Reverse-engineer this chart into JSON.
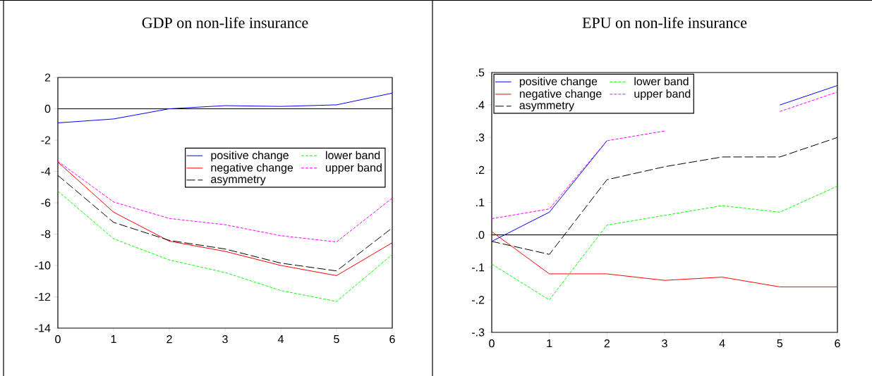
{
  "chart_data": [
    {
      "type": "line",
      "title": "GDP on non-life insurance",
      "x": [
        0,
        1,
        2,
        3,
        4,
        5,
        6
      ],
      "xlim": [
        0,
        6
      ],
      "xticks": [
        0,
        1,
        2,
        3,
        4,
        5,
        6
      ],
      "ylim": [
        -14,
        2
      ],
      "yticks": [
        -14,
        -12,
        -10,
        -8,
        -6,
        -4,
        -2,
        0,
        2
      ],
      "legend": "right",
      "ref_lines": [
        {
          "axis": "y",
          "value": 0
        }
      ],
      "series": [
        {
          "name": "positive change",
          "color": "#0000ff",
          "line_style": "solid",
          "values": [
            -0.9,
            -0.65,
            0.0,
            0.2,
            0.15,
            0.25,
            1.0
          ]
        },
        {
          "name": "negative change",
          "color": "#ff0000",
          "line_style": "solid",
          "values": [
            -3.4,
            -6.6,
            -8.45,
            -9.1,
            -10.0,
            -10.65,
            -8.55
          ]
        },
        {
          "name": "asymmetry",
          "color": "#000000",
          "line_style": "dashed",
          "values": [
            -4.25,
            -7.25,
            -8.4,
            -8.95,
            -9.85,
            -10.35,
            -7.6
          ]
        },
        {
          "name": "lower band",
          "color": "#00ff00",
          "line_style": "dotted",
          "values": [
            -5.25,
            -8.3,
            -9.65,
            -10.45,
            -11.6,
            -12.3,
            -9.3
          ]
        },
        {
          "name": "upper band",
          "color": "#ff00ff",
          "line_style": "dotted",
          "values": [
            -3.35,
            -5.95,
            -7.0,
            -7.4,
            -8.1,
            -8.5,
            -5.7
          ]
        }
      ]
    },
    {
      "type": "line",
      "title": "EPU on non-life insurance",
      "x": [
        0,
        1,
        2,
        3,
        4,
        5,
        6
      ],
      "xlim": [
        0,
        6
      ],
      "xticks": [
        0,
        1,
        2,
        3,
        4,
        5,
        6
      ],
      "ylim": [
        -0.3,
        0.5
      ],
      "yticks": [
        {
          "value": -0.3,
          "label": "-.3"
        },
        {
          "value": -0.2,
          "label": "-.2"
        },
        {
          "value": -0.1,
          "label": "-.1"
        },
        {
          "value": 0,
          "label": ".0"
        },
        {
          "value": 0.1,
          "label": ".1"
        },
        {
          "value": 0.2,
          "label": ".2"
        },
        {
          "value": 0.3,
          "label": ".3"
        },
        {
          "value": 0.4,
          "label": ".4"
        },
        {
          "value": 0.5,
          "label": ".5"
        }
      ],
      "legend": "top left",
      "ref_lines": [
        {
          "axis": "y",
          "value": 0
        }
      ],
      "series": [
        {
          "name": "positive change",
          "color": "#0000ff",
          "line_style": "solid",
          "values": [
            -0.02,
            0.07,
            0.29,
            null,
            null,
            0.4,
            0.46
          ]
        },
        {
          "name": "negative change",
          "color": "#ff0000",
          "line_style": "solid",
          "values": [
            0.01,
            -0.12,
            -0.12,
            -0.14,
            -0.13,
            -0.16,
            -0.16
          ]
        },
        {
          "name": "asymmetry",
          "color": "#000000",
          "line_style": "dashed",
          "values": [
            -0.02,
            -0.06,
            0.17,
            0.21,
            0.24,
            0.24,
            0.3
          ]
        },
        {
          "name": "lower band",
          "color": "#00ff00",
          "line_style": "dotted",
          "values": [
            -0.09,
            -0.2,
            0.03,
            0.06,
            0.09,
            0.07,
            0.15
          ]
        },
        {
          "name": "upper band",
          "color": "#ff00ff",
          "line_style": "dotted",
          "values": [
            0.05,
            0.08,
            0.29,
            0.32,
            null,
            0.38,
            0.44
          ]
        }
      ]
    }
  ]
}
